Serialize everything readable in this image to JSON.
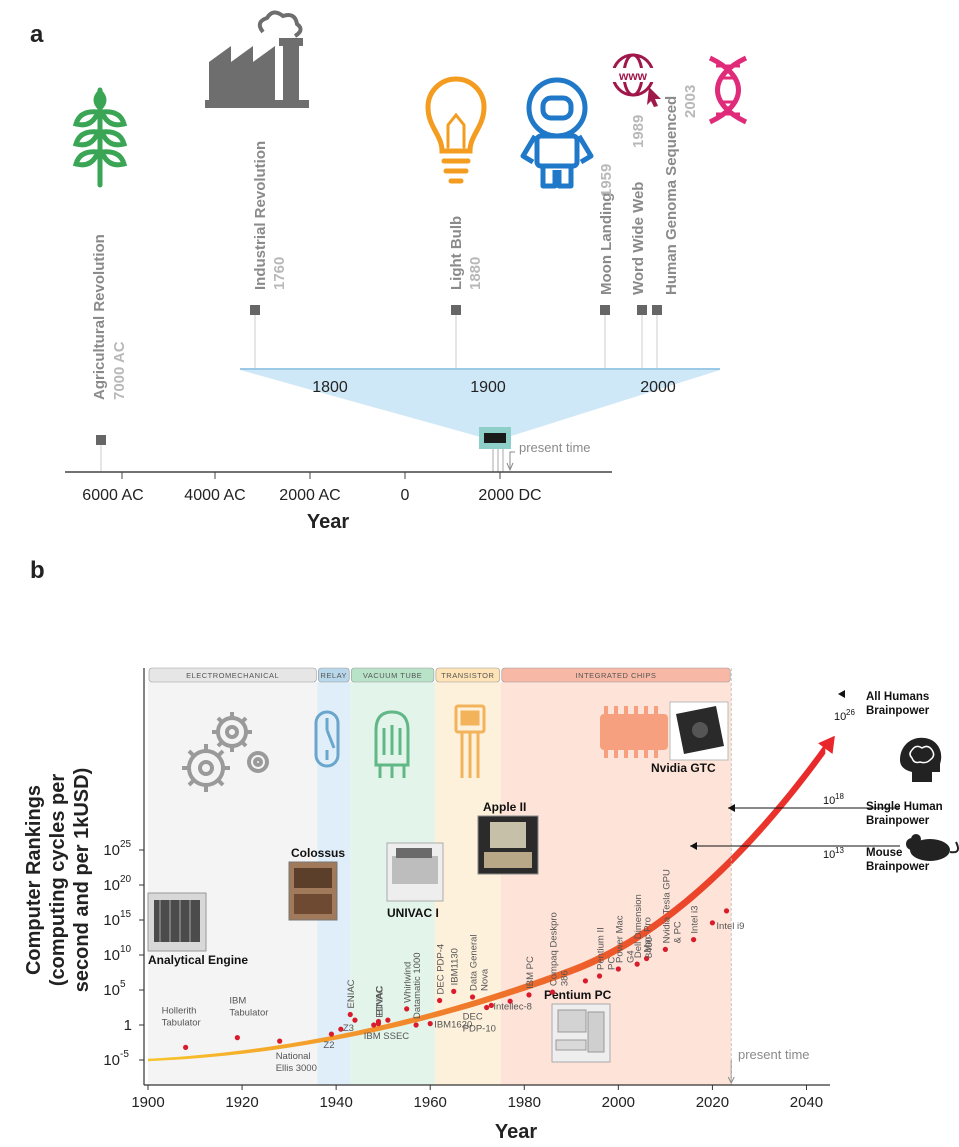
{
  "panel_a": {
    "panel_label": "a",
    "x_axis_label": "Year",
    "present_time_label": "present time",
    "x_ticks": [
      "6000 AC",
      "4000 AC",
      "2000 AC",
      "0",
      "2000 DC"
    ],
    "zoom_ticks": [
      "1800",
      "1900",
      "2000"
    ],
    "events": [
      {
        "name": "Agricultural Revolution",
        "year": "7000 AC",
        "icon": "wheat-icon"
      },
      {
        "name": "Industrial Revolution",
        "year": "1760",
        "icon": "factory-icon"
      },
      {
        "name": "Light Bulb",
        "year": "1880",
        "icon": "light-bulb-icon"
      },
      {
        "name": "Moon Landing",
        "year": "1959",
        "icon": "astronaut-icon"
      },
      {
        "name": "Word Wide Web",
        "year": "1989",
        "icon": "www-globe-icon"
      },
      {
        "name": "Human Genoma Sequenced",
        "year": "2003",
        "icon": "dna-icon"
      }
    ],
    "colors": {
      "wheat": "#3aa655",
      "factory": "#6e6e6e",
      "bulb": "#f39c1f",
      "astronaut": "#1f78c8",
      "www": "#a0174a",
      "dna": "#e02a7a",
      "zoom": "#cfe8f7",
      "marker": "#666666"
    }
  },
  "chart_data": {
    "type": "scatter",
    "panel_label": "b",
    "xlabel": "Year",
    "ylabel": "Computer Rankings (computing cycles per second and per 1kUSD)",
    "xlim": [
      1900,
      2045
    ],
    "x_ticks": [
      "1900",
      "1920",
      "1940",
      "1960",
      "1980",
      "2000",
      "2020",
      "2040"
    ],
    "y_ticks": [
      {
        "base": "10",
        "exp": "-5"
      },
      {
        "base": "1",
        "exp": ""
      },
      {
        "base": "10",
        "exp": "5"
      },
      {
        "base": "10",
        "exp": "10"
      },
      {
        "base": "10",
        "exp": "15"
      },
      {
        "base": "10",
        "exp": "20"
      },
      {
        "base": "10",
        "exp": "25"
      }
    ],
    "ylim_exponent": [
      -6,
      27
    ],
    "y_scale": "log",
    "eras": [
      {
        "name": "ELECTROMECHANICAL",
        "start": 1900,
        "end": 1936,
        "color": "#e6e6e6",
        "band": "#f4f4f4"
      },
      {
        "name": "RELAY",
        "start": 1936,
        "end": 1943,
        "color": "#b9d7ea",
        "band": "#dfeef8"
      },
      {
        "name": "VACUUM TUBE",
        "start": 1943,
        "end": 1961,
        "color": "#b9e3c9",
        "band": "#e3f4ea"
      },
      {
        "name": "TRANSISTOR",
        "start": 1961,
        "end": 1975,
        "color": "#fde3b6",
        "band": "#fdf1dc"
      },
      {
        "name": "INTEGRATED CHIPS",
        "start": 1975,
        "end": 2024,
        "color": "#f7b9a5",
        "band": "#fde3d8"
      }
    ],
    "points": [
      {
        "label": "Hollerith Tabulator",
        "year": 1908,
        "exp": -3.2
      },
      {
        "label": "IBM Tabulator",
        "year": 1919,
        "exp": -1.8
      },
      {
        "label": "National Ellis 3000",
        "year": 1928,
        "exp": -2.3
      },
      {
        "label": "Z2",
        "year": 1939,
        "exp": -1.3
      },
      {
        "label": "Z3",
        "year": 1941,
        "exp": -0.6
      },
      {
        "label": "ENIAC",
        "year": 1943,
        "exp": 1.5
      },
      {
        "label": "Colossus",
        "year": 1944,
        "exp": 0.7
      },
      {
        "label": "BINAC",
        "year": 1949,
        "exp": 0.5
      },
      {
        "label": "IBM SSEC",
        "year": 1948,
        "exp": 0.0
      },
      {
        "label": "UNIVAC I",
        "year": 1951,
        "exp": 0.7
      },
      {
        "label": "EDVAC",
        "year": 1949,
        "exp": 0.2
      },
      {
        "label": "Whirlwind",
        "year": 1955,
        "exp": 2.3
      },
      {
        "label": "Datamatic 1000",
        "year": 1957,
        "exp": 0.0
      },
      {
        "label": "DEC PDP-4",
        "year": 1962,
        "exp": 3.5
      },
      {
        "label": "IBM1620",
        "year": 1960,
        "exp": 0.2
      },
      {
        "label": "IBM1130",
        "year": 1965,
        "exp": 4.8
      },
      {
        "label": "Data General Nova",
        "year": 1969,
        "exp": 4.0
      },
      {
        "label": "DEC PDP-10",
        "year": 1972,
        "exp": 2.5
      },
      {
        "label": "Intellec-8",
        "year": 1973,
        "exp": 2.8
      },
      {
        "label": "Apple II",
        "year": 1977,
        "exp": 3.4
      },
      {
        "label": "IBM PC",
        "year": 1981,
        "exp": 4.3
      },
      {
        "label": "Compaq Deskpro 386",
        "year": 1986,
        "exp": 4.7
      },
      {
        "label": "Pentium PC",
        "year": 1993,
        "exp": 6.3
      },
      {
        "label": "Pentium II PC",
        "year": 1996,
        "exp": 7.0
      },
      {
        "label": "Power Mac G4",
        "year": 2000,
        "exp": 8.0
      },
      {
        "label": "Dell Dimension 8400",
        "year": 2004,
        "exp": 8.7
      },
      {
        "label": "Mac Pro",
        "year": 2006,
        "exp": 9.5
      },
      {
        "label": "Nvidia Tesla GPU & PC",
        "year": 2010,
        "exp": 10.8
      },
      {
        "label": "Intel i3",
        "year": 2016,
        "exp": 12.2
      },
      {
        "label": "Intel i9",
        "year": 2020,
        "exp": 14.6
      },
      {
        "label": "Nvidia GTC",
        "year": 2023,
        "exp": 16.3
      }
    ],
    "image_labels": [
      "Analytical Engine",
      "Colossus",
      "UNIVAC I",
      "Apple II",
      "Pentium PC",
      "Nvidia GTC"
    ],
    "annotations": [
      {
        "label_lines": [
          "Mouse",
          "Brainpower"
        ],
        "value": "10",
        "exp": "13"
      },
      {
        "label_lines": [
          "Single Human",
          "Brainpower"
        ],
        "value": "10",
        "exp": "18"
      },
      {
        "label_lines": [
          "All Humans",
          "Brainpower"
        ],
        "value": "10",
        "exp": "26"
      }
    ],
    "present_time_label": "present time",
    "present_time_year": 2024,
    "trend_colors": {
      "start": "#f7c62b",
      "end": "#e8262b"
    },
    "point_color": "#d91b2c",
    "icons": [
      "gears-icon",
      "relay-switch-icon",
      "vacuum-tube-icon",
      "transistor-icon",
      "microchip-icon",
      "brain-head-icon",
      "mouse-icon"
    ]
  }
}
